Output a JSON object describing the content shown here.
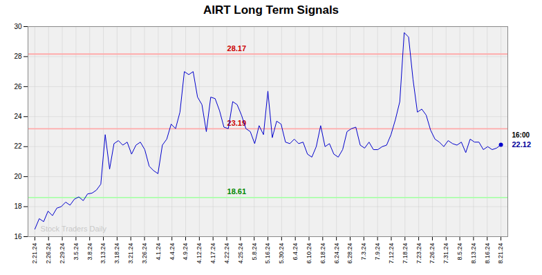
{
  "chart_data": {
    "type": "line",
    "title": "AIRT Long Term Signals",
    "x": [
      0,
      0.3208,
      0.6415,
      0.9623,
      1.283,
      1.6038,
      1.9245,
      2.2453,
      2.566,
      2.8868,
      3.2075,
      3.5283,
      3.8491,
      4.1698,
      4.4906,
      4.8113,
      5.1321,
      5.4528,
      5.7736,
      6.0943,
      6.4151,
      6.7358,
      7.0566,
      7.3774,
      7.6981,
      8.0189,
      8.3396,
      8.6604,
      8.9811,
      9.3019,
      9.6226,
      9.9434,
      10.2642,
      10.5849,
      10.9057,
      11.2264,
      11.5472,
      11.8679,
      12.1887,
      12.5094,
      12.8302,
      13.1509,
      13.4717,
      13.7925,
      14.1132,
      14.434,
      14.7547,
      15.0755,
      15.3962,
      15.717,
      16.0377,
      16.3585,
      16.6792,
      17,
      17.3208,
      17.6415,
      17.9623,
      18.283,
      18.6038,
      18.9245,
      19.2453,
      19.566,
      19.8868,
      20.2075,
      20.5283,
      20.8491,
      21.1698,
      21.4906,
      21.8113,
      22.1321,
      22.4528,
      22.7736,
      23.0943,
      23.4151,
      23.7358,
      24.0566,
      24.3774,
      24.6981,
      25.0189,
      25.3396,
      25.6604,
      25.9811,
      26.3019,
      26.6226,
      26.9434,
      27.2642,
      27.5849,
      27.9057,
      28.2264,
      28.5472,
      28.8679,
      29.1887,
      29.5094,
      29.8302,
      30.1509,
      30.4717,
      30.7925,
      31.1132,
      31.434,
      31.7547,
      32.0755,
      32.3962,
      32.717,
      33.0377,
      33.3585,
      33.6792,
      34
    ],
    "values": [
      16.5,
      17.2,
      17.0,
      17.7,
      17.4,
      17.9,
      18.0,
      18.3,
      18.1,
      18.5,
      18.65,
      18.4,
      18.85,
      18.9,
      19.1,
      19.5,
      22.8,
      20.5,
      22.2,
      22.4,
      22.1,
      22.3,
      21.5,
      22.1,
      22.3,
      21.8,
      20.7,
      20.4,
      20.2,
      22.1,
      22.5,
      23.5,
      23.2,
      24.3,
      27.0,
      26.8,
      27.0,
      25.3,
      24.8,
      23.0,
      25.3,
      25.2,
      24.4,
      23.3,
      23.2,
      25.0,
      24.8,
      24.1,
      23.2,
      23.0,
      22.2,
      23.4,
      22.8,
      25.7,
      22.6,
      23.7,
      23.5,
      22.3,
      22.2,
      22.5,
      22.2,
      22.3,
      21.5,
      21.3,
      22.0,
      23.4,
      22.0,
      22.2,
      21.5,
      21.3,
      21.8,
      23.0,
      23.2,
      23.3,
      22.1,
      21.9,
      22.3,
      21.8,
      21.8,
      22.0,
      22.1,
      22.8,
      23.8,
      25.0,
      29.6,
      29.3,
      26.5,
      24.3,
      24.5,
      24.1,
      23.1,
      22.5,
      22.3,
      22.0,
      22.4,
      22.2,
      22.1,
      22.3,
      21.6,
      22.5,
      22.3,
      22.3,
      21.8,
      22.0,
      21.8,
      21.9,
      22.12
    ],
    "color": "#0000cc",
    "xlim": [
      -0.5,
      34.5
    ],
    "xticks": [
      {
        "value": 0,
        "label": "2.21.24"
      },
      {
        "value": 1,
        "label": "2.26.24"
      },
      {
        "value": 2,
        "label": "2.29.24"
      },
      {
        "value": 3,
        "label": "3.5.24"
      },
      {
        "value": 4,
        "label": "3.8.24"
      },
      {
        "value": 5,
        "label": "3.13.24"
      },
      {
        "value": 6,
        "label": "3.18.24"
      },
      {
        "value": 7,
        "label": "3.21.24"
      },
      {
        "value": 8,
        "label": "3.26.24"
      },
      {
        "value": 9,
        "label": "4.1.24"
      },
      {
        "value": 10,
        "label": "4.4.24"
      },
      {
        "value": 11,
        "label": "4.9.24"
      },
      {
        "value": 12,
        "label": "4.12.24"
      },
      {
        "value": 13,
        "label": "4.17.24"
      },
      {
        "value": 14,
        "label": "4.22.24"
      },
      {
        "value": 15,
        "label": "4.25.24"
      },
      {
        "value": 16,
        "label": "5.8.24"
      },
      {
        "value": 17,
        "label": "5.16.24"
      },
      {
        "value": 18,
        "label": "5.30.24"
      },
      {
        "value": 19,
        "label": "6.4.24"
      },
      {
        "value": 20,
        "label": "6.10.24"
      },
      {
        "value": 21,
        "label": "6.18.24"
      },
      {
        "value": 22,
        "label": "6.24.24"
      },
      {
        "value": 23,
        "label": "6.28.24"
      },
      {
        "value": 24,
        "label": "7.3.24"
      },
      {
        "value": 25,
        "label": "7.9.24"
      },
      {
        "value": 26,
        "label": "7.12.24"
      },
      {
        "value": 27,
        "label": "7.18.24"
      },
      {
        "value": 28,
        "label": "7.23.24"
      },
      {
        "value": 29,
        "label": "7.26.24"
      },
      {
        "value": 30,
        "label": "7.31.24"
      },
      {
        "value": 31,
        "label": "8.5.24"
      },
      {
        "value": 32,
        "label": "8.13.24"
      },
      {
        "value": 33,
        "label": "8.16.24"
      },
      {
        "value": 34,
        "label": "8.21.24"
      }
    ],
    "ylim": [
      16,
      30
    ],
    "yticks": [
      16,
      18,
      20,
      22,
      24,
      26,
      28,
      30
    ],
    "grid": true,
    "reference_lines": [
      {
        "value": 28.17,
        "color": "#ffaaaa",
        "label": "28.17",
        "label_color": "#cc0000"
      },
      {
        "value": 23.19,
        "color": "#ffaaaa",
        "label": "23.19",
        "label_color": "#cc0000"
      },
      {
        "value": 18.61,
        "color": "#aaffaa",
        "label": "18.61",
        "label_color": "#008800"
      }
    ],
    "annotations": [
      {
        "text": "16:00",
        "color": "#000000"
      },
      {
        "text": "22.12",
        "color": "#000099"
      },
      {
        "text": "Stock Traders Daily",
        "color": "#c0c0c0"
      }
    ]
  }
}
